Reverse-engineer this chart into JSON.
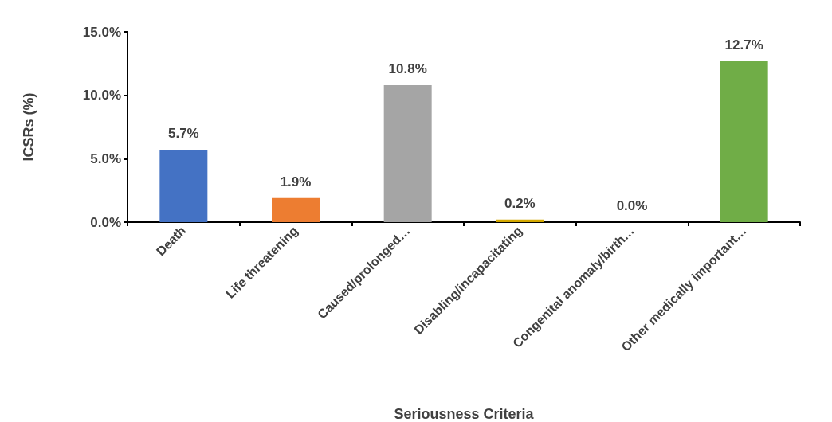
{
  "chart_data": {
    "type": "bar",
    "categories": [
      "Death",
      "Life threatening",
      "Caused/prolonged…",
      "Disabling/incapacitating",
      "Congenital anomaly/birth…",
      "Other medically important…"
    ],
    "values": [
      5.7,
      1.9,
      10.8,
      0.2,
      0.0,
      12.7
    ],
    "colors": [
      "#4472c4",
      "#ed7d31",
      "#a5a5a5",
      "#d4a800",
      "#2e75b6",
      "#70ad47"
    ],
    "value_labels": [
      "5.7%",
      "1.9%",
      "10.8%",
      "0.2%",
      "0.0%",
      "12.7%"
    ],
    "xlabel": "Seriousness Criteria",
    "ylabel": "ICSRs (%)",
    "ylim": [
      0,
      15
    ],
    "yticks": [
      {
        "value": 0,
        "label": "0.0%"
      },
      {
        "value": 5,
        "label": "5.0%"
      },
      {
        "value": 10,
        "label": "10.0%"
      },
      {
        "value": 15,
        "label": "15.0%"
      }
    ],
    "grid": false
  }
}
